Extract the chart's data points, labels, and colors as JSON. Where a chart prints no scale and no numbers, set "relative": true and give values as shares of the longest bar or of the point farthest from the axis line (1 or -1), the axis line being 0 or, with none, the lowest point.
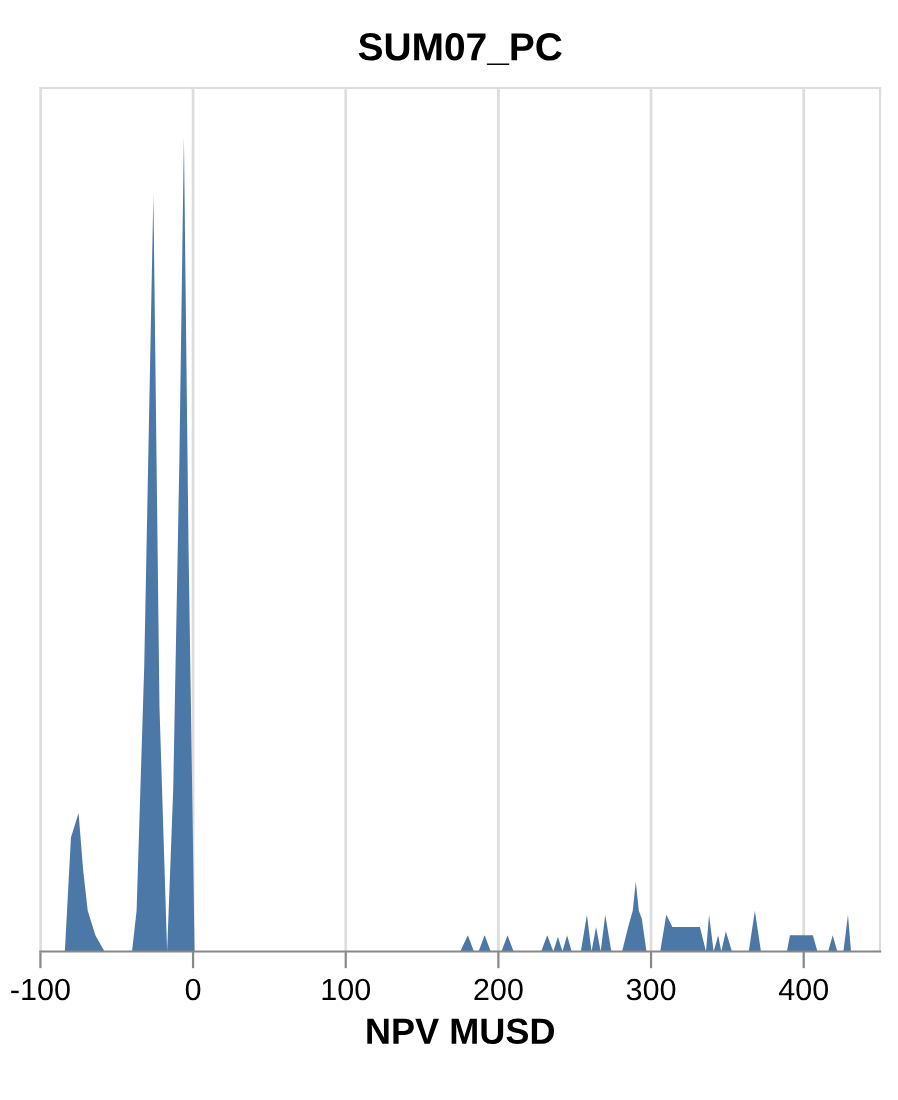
{
  "chart_data": {
    "type": "area",
    "title": "SUM07_PC",
    "xlabel": "NPV MUSD",
    "relative": true,
    "grid": "x",
    "xlim": [
      -100,
      450
    ],
    "xticks": [
      -100,
      0,
      100,
      200,
      300,
      400
    ],
    "series": [
      {
        "color": "#4c78a8",
        "x": [
          -84,
          -80,
          -75,
          -72,
          -69,
          -64,
          -58,
          -40,
          -37,
          -32,
          -26,
          -22,
          -17,
          -13,
          -9,
          -6,
          -3,
          1,
          5,
          175,
          180,
          184,
          187,
          191,
          195,
          202,
          206,
          210,
          228,
          232,
          236,
          239,
          242,
          245,
          248,
          254,
          258,
          261,
          264,
          267,
          270,
          274,
          281,
          285,
          288,
          290,
          292,
          294,
          297,
          306,
          310,
          314,
          332,
          336,
          338,
          341,
          344,
          346,
          349,
          353,
          356,
          364,
          368,
          372,
          389,
          391,
          406,
          409,
          416,
          419,
          422,
          426,
          429,
          431
        ],
        "values": [
          0,
          0.14,
          0.17,
          0.1,
          0.05,
          0.02,
          0,
          0,
          0.05,
          0.35,
          0.93,
          0.3,
          0,
          0.2,
          0.6,
          1.0,
          0.5,
          0,
          0,
          0,
          0.02,
          0,
          0,
          0.02,
          0,
          0,
          0.02,
          0,
          0,
          0.02,
          0,
          0.018,
          0,
          0.02,
          0,
          0,
          0.045,
          0,
          0.03,
          0,
          0.045,
          0,
          0,
          0.03,
          0.05,
          0.086,
          0.05,
          0.04,
          0,
          0,
          0.045,
          0.03,
          0.03,
          0,
          0.045,
          0,
          0.02,
          0,
          0.025,
          0,
          0,
          0,
          0.05,
          0,
          0,
          0.02,
          0.02,
          0,
          0,
          0.02,
          0,
          0,
          0.045,
          0
        ]
      }
    ]
  }
}
